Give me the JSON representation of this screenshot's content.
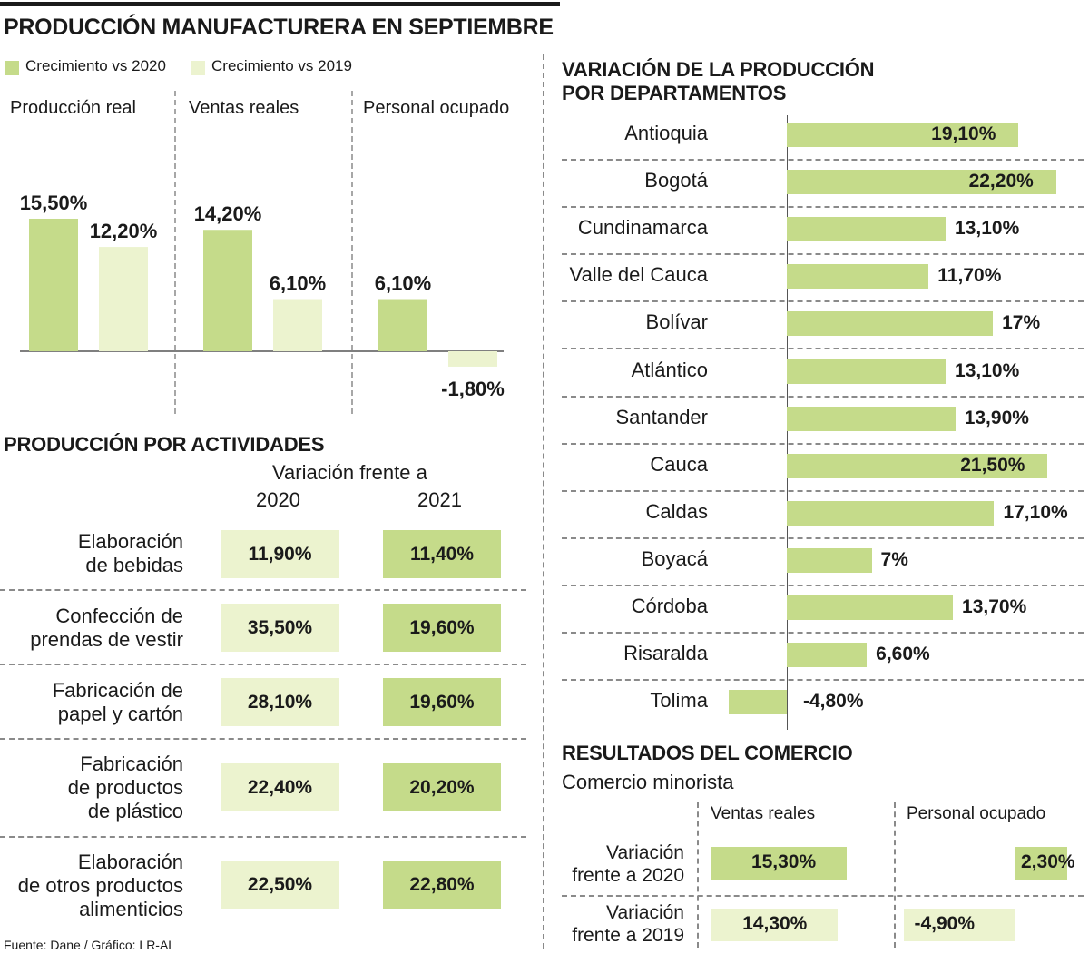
{
  "colors": {
    "c2020": "#c5db8a",
    "c2019": "#ecf3cf",
    "text": "#1a1a1a",
    "divider": "#8a8a8a"
  },
  "title": "PRODUCCIÓN MANUFACTURERA EN SEPTIEMBRE",
  "legend": {
    "s2020": "Crecimiento vs 2020",
    "s2019": "Crecimiento vs 2019"
  },
  "chart_data": [
    {
      "type": "bar",
      "title": "PRODUCCIÓN MANUFACTURERA EN SEPTIEMBRE",
      "categories": [
        "Producción real",
        "Ventas reales",
        "Personal ocupado"
      ],
      "series": [
        {
          "name": "Crecimiento vs 2020",
          "values": [
            15.5,
            14.2,
            6.1
          ],
          "labels": [
            "15,50%",
            "14,20%",
            "6,10%"
          ]
        },
        {
          "name": "Crecimiento vs 2019",
          "values": [
            12.2,
            6.1,
            -1.8
          ],
          "labels": [
            "12,20%",
            "6,10%",
            "-1,80%"
          ]
        }
      ]
    },
    {
      "type": "table",
      "title": "PRODUCCIÓN POR ACTIVIDADES",
      "header": "Variación frente a",
      "columns": [
        "2020",
        "2021"
      ],
      "rows": [
        {
          "label": [
            "Elaboración",
            "de bebidas"
          ],
          "v2020": "11,90%",
          "v2021": "11,40%"
        },
        {
          "label": [
            "Confección de",
            "prendas de vestir"
          ],
          "v2020": "35,50%",
          "v2021": "19,60%"
        },
        {
          "label": [
            "Fabricación de",
            "papel y cartón"
          ],
          "v2020": "28,10%",
          "v2021": "19,60%"
        },
        {
          "label": [
            "Fabricación",
            "de productos",
            "de plástico"
          ],
          "v2020": "22,40%",
          "v2021": "20,20%"
        },
        {
          "label": [
            "Elaboración",
            "de otros productos",
            "alimenticios"
          ],
          "v2020": "22,50%",
          "v2021": "22,80%"
        }
      ]
    },
    {
      "type": "bar",
      "orientation": "horizontal",
      "title": "VARIACIÓN DE LA PRODUCCIÓN POR DEPARTAMENTOS",
      "categories": [
        "Antioquia",
        "Bogotá",
        "Cundinamarca",
        "Valle del Cauca",
        "Bolívar",
        "Atlántico",
        "Santander",
        "Cauca",
        "Caldas",
        "Boyacá",
        "Córdoba",
        "Risaralda",
        "Tolima"
      ],
      "values": [
        19.1,
        22.2,
        13.1,
        11.7,
        17,
        13.1,
        13.9,
        21.5,
        17.1,
        7,
        13.7,
        6.6,
        -4.8
      ],
      "labels": [
        "19,10%",
        "22,20%",
        "13,10%",
        "11,70%",
        "17%",
        "13,10%",
        "13,90%",
        "21,50%",
        "17,10%",
        "7%",
        "13,70%",
        "6,60%",
        "-4,80%"
      ]
    },
    {
      "type": "bar",
      "orientation": "horizontal",
      "title": "RESULTADOS DEL COMERCIO",
      "subtitle": "Comercio minorista",
      "columns": [
        "Ventas reales",
        "Personal ocupado"
      ],
      "rows": [
        {
          "label": [
            "Variación",
            "frente a 2020"
          ],
          "ventas": 15.3,
          "ventas_label": "15,30%",
          "personal": 2.3,
          "personal_label": "2,30%"
        },
        {
          "label": [
            "Variación",
            "frente a 2019"
          ],
          "ventas": 14.3,
          "ventas_label": "14,30%",
          "personal": -4.9,
          "personal_label": "-4,90%"
        }
      ]
    }
  ],
  "source": "Fuente: Dane / Gráfico: LR-AL"
}
